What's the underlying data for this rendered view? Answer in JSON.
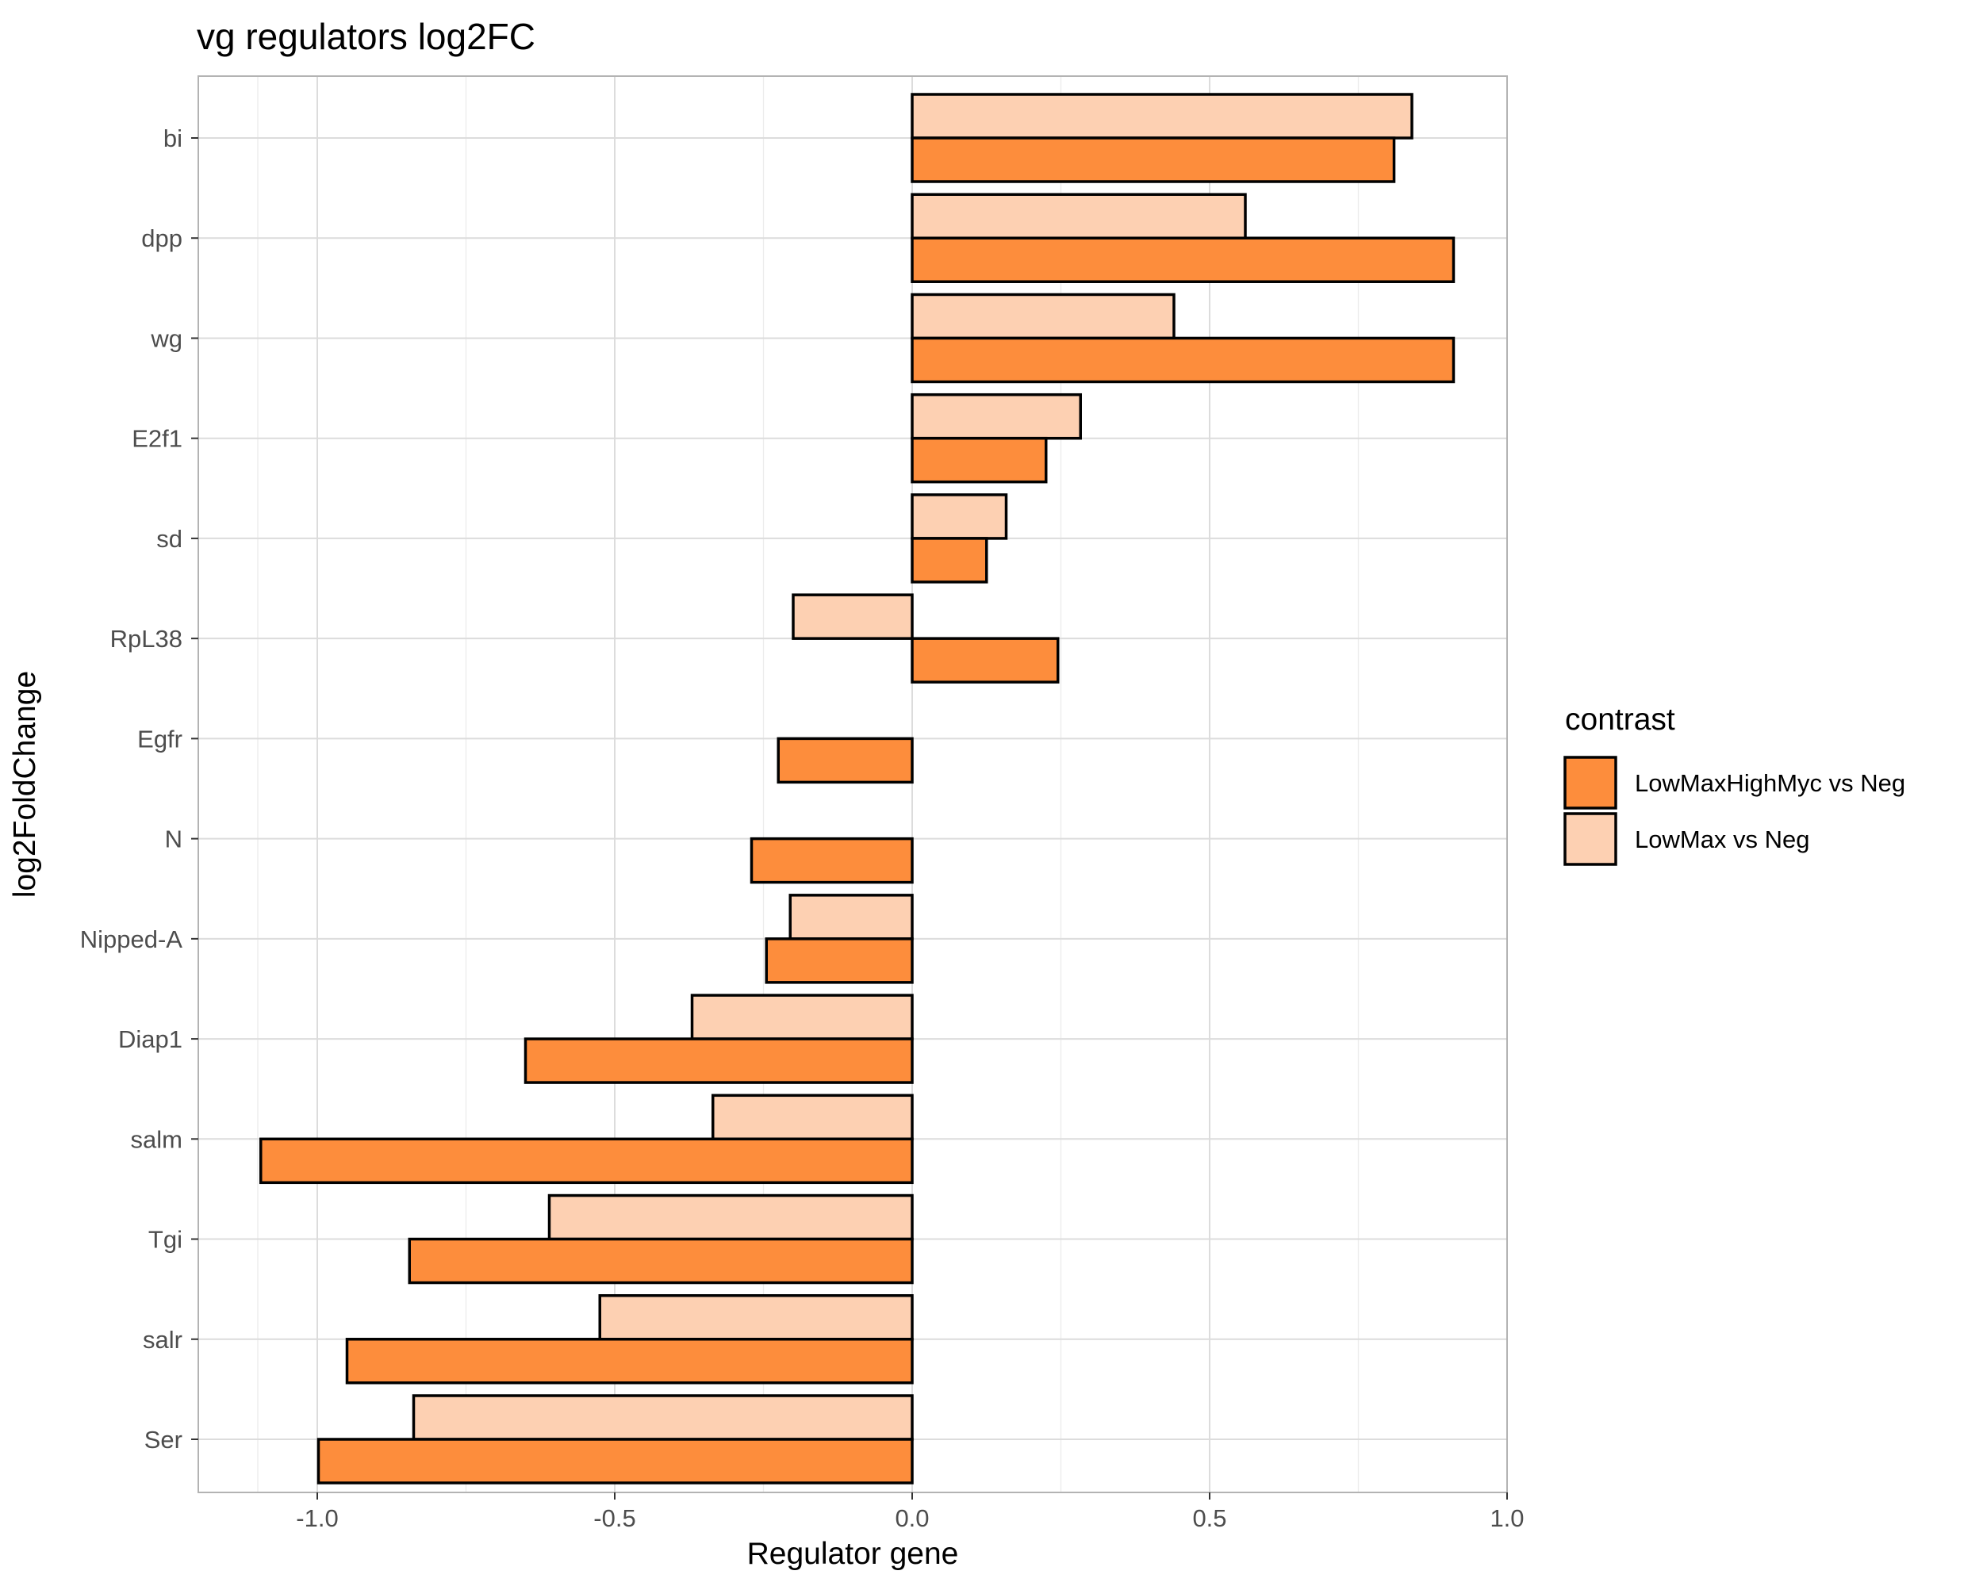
{
  "chart_data": {
    "type": "bar",
    "orientation": "horizontal",
    "title": "vg regulators log2FC",
    "xlabel": "Regulator gene",
    "ylabel": "log2FoldChange",
    "xlim": [
      -1.2,
      1.0
    ],
    "xticks": [
      -1.0,
      -0.5,
      0.0,
      0.5,
      1.0
    ],
    "xtick_labels": [
      "-1.0",
      "-0.5",
      "0.0",
      "0.5",
      "1.0"
    ],
    "grid": true,
    "legend": {
      "title": "contrast",
      "placement": "right"
    },
    "categories": [
      "bi",
      "dpp",
      "wg",
      "E2f1",
      "sd",
      "RpL38",
      "Egfr",
      "N",
      "Nipped-A",
      "Diap1",
      "salm",
      "Tgi",
      "salr",
      "Ser"
    ],
    "series": [
      {
        "name": "LowMaxHighMyc vs Neg",
        "color": "#fd8d3c",
        "values": [
          0.81,
          0.91,
          0.91,
          0.225,
          0.125,
          0.245,
          -0.225,
          -0.27,
          -0.245,
          -0.65,
          -1.095,
          -0.845,
          -0.95,
          -0.998
        ]
      },
      {
        "name": "LowMax vs Neg",
        "color": "#fdd0b2",
        "values": [
          0.84,
          0.56,
          0.44,
          0.283,
          0.158,
          -0.2,
          0.0,
          0.0,
          -0.205,
          -0.37,
          -0.335,
          -0.61,
          -0.525,
          -0.838
        ]
      }
    ]
  }
}
